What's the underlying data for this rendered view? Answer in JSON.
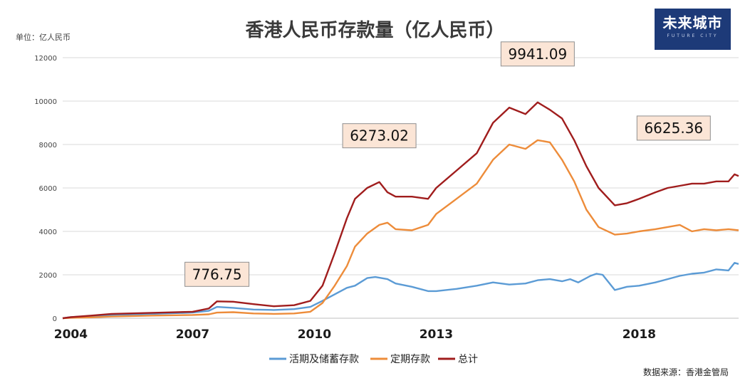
{
  "title": "香港人民币存款量（亿人民币）",
  "unit_label": "单位：亿人民币",
  "logo": {
    "main": "未来城市",
    "sub": "FUTURE CITY"
  },
  "source": "数据来源：香港金管局",
  "colors": {
    "demand": "#5b9bd5",
    "time": "#ed8c3a",
    "total": "#a01d1d",
    "annotation_bg": "#fbe5d6",
    "annotation_border": "#8f8f8f",
    "grid": "#d9d9d9"
  },
  "chart_data": {
    "type": "line",
    "title": "香港人民币存款量（亿人民币）",
    "ylabel": "单位：亿人民币",
    "ylim": [
      0,
      12000
    ],
    "yticks": [
      0,
      2000,
      4000,
      6000,
      8000,
      10000,
      12000
    ],
    "xlim": [
      2003.8,
      2020.45
    ],
    "xticks": [
      2004,
      2007,
      2010,
      2013,
      2018
    ],
    "grid": true,
    "legend_position": "bottom",
    "series": [
      {
        "key": "demand",
        "name": "活期及储蓄存款",
        "color": "#5b9bd5",
        "x": [
          2003.8,
          2004.0,
          2004.5,
          2005.0,
          2006.0,
          2007.0,
          2007.4,
          2007.6,
          2008.0,
          2008.5,
          2009.0,
          2009.5,
          2009.9,
          2010.2,
          2010.5,
          2010.8,
          2011.0,
          2011.3,
          2011.5,
          2011.8,
          2012.0,
          2012.4,
          2012.8,
          2013.0,
          2013.5,
          2014.0,
          2014.4,
          2014.8,
          2015.2,
          2015.5,
          2015.8,
          2016.1,
          2016.3,
          2016.5,
          2016.8,
          2016.95,
          2017.1,
          2017.4,
          2017.7,
          2018.0,
          2018.4,
          2018.7,
          2019.0,
          2019.3,
          2019.6,
          2019.9,
          2020.2,
          2020.35,
          2020.45
        ],
        "values": [
          0,
          50,
          100,
          150,
          200,
          260,
          340,
          520,
          480,
          400,
          380,
          420,
          520,
          800,
          1100,
          1400,
          1500,
          1850,
          1900,
          1800,
          1600,
          1450,
          1250,
          1250,
          1350,
          1500,
          1650,
          1550,
          1600,
          1750,
          1800,
          1700,
          1800,
          1650,
          1950,
          2050,
          2000,
          1300,
          1450,
          1500,
          1650,
          1800,
          1950,
          2050,
          2100,
          2250,
          2200,
          2550,
          2500
        ]
      },
      {
        "key": "time",
        "name": "定期存款",
        "color": "#ed8c3a",
        "x": [
          2003.8,
          2004.0,
          2004.5,
          2005.0,
          2006.0,
          2007.0,
          2007.4,
          2007.6,
          2008.0,
          2008.5,
          2009.0,
          2009.5,
          2009.9,
          2010.2,
          2010.5,
          2010.8,
          2011.0,
          2011.3,
          2011.6,
          2011.8,
          2012.0,
          2012.4,
          2012.8,
          2013.0,
          2013.5,
          2014.0,
          2014.4,
          2014.8,
          2015.2,
          2015.5,
          2015.8,
          2016.1,
          2016.4,
          2016.7,
          2017.0,
          2017.4,
          2017.7,
          2018.0,
          2018.4,
          2018.7,
          2019.0,
          2019.3,
          2019.6,
          2019.9,
          2020.2,
          2020.45
        ],
        "values": [
          0,
          20,
          40,
          80,
          120,
          150,
          180,
          260,
          280,
          220,
          200,
          220,
          300,
          700,
          1500,
          2400,
          3300,
          3900,
          4300,
          4400,
          4100,
          4050,
          4300,
          4800,
          5500,
          6200,
          7300,
          8000,
          7800,
          8200,
          8100,
          7300,
          6300,
          5000,
          4200,
          3850,
          3900,
          4000,
          4100,
          4200,
          4300,
          4000,
          4100,
          4050,
          4100,
          4050
        ]
      },
      {
        "key": "total",
        "name": "总计",
        "color": "#a01d1d",
        "x": [
          2003.8,
          2004.0,
          2004.5,
          2005.0,
          2006.0,
          2007.0,
          2007.4,
          2007.6,
          2008.0,
          2008.5,
          2009.0,
          2009.5,
          2009.9,
          2010.2,
          2010.5,
          2010.8,
          2011.0,
          2011.3,
          2011.6,
          2011.8,
          2012.0,
          2012.4,
          2012.8,
          2013.0,
          2013.5,
          2014.0,
          2014.4,
          2014.8,
          2015.2,
          2015.5,
          2015.8,
          2016.1,
          2016.4,
          2016.7,
          2017.0,
          2017.4,
          2017.7,
          2018.0,
          2018.4,
          2018.7,
          2019.0,
          2019.3,
          2019.6,
          2019.9,
          2020.2,
          2020.35,
          2020.45
        ],
        "values": [
          0,
          50,
          120,
          200,
          250,
          300,
          450,
          776.75,
          760,
          650,
          550,
          600,
          800,
          1500,
          3000,
          4600,
          5500,
          6000,
          6273.02,
          5800,
          5600,
          5600,
          5500,
          6000,
          6800,
          7600,
          9000,
          9700,
          9400,
          9941.09,
          9600,
          9200,
          8200,
          7000,
          6000,
          5200,
          5300,
          5500,
          5800,
          6000,
          6100,
          6200,
          6200,
          6300,
          6300,
          6625.36,
          6550
        ]
      }
    ],
    "annotations": [
      {
        "text": "776.75",
        "x": 2007.6,
        "y": 776.75
      },
      {
        "text": "6273.02",
        "x": 2011.6,
        "y": 6273.02
      },
      {
        "text": "9941.09",
        "x": 2015.5,
        "y": 9941.09
      },
      {
        "text": "6625.36",
        "x": 2020.35,
        "y": 6625.36
      }
    ]
  }
}
